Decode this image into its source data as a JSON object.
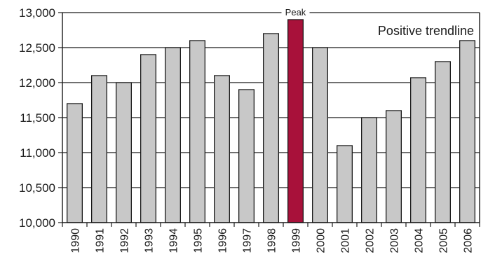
{
  "chart_data": {
    "type": "bar",
    "categories": [
      "1990",
      "1991",
      "1992",
      "1993",
      "1994",
      "1995",
      "1996",
      "1997",
      "1998",
      "1999",
      "2000",
      "2001",
      "2002",
      "2003",
      "2004",
      "2005",
      "2006"
    ],
    "values": [
      11700,
      12100,
      12000,
      12400,
      12500,
      12600,
      12100,
      11900,
      12700,
      12900,
      12500,
      11100,
      11500,
      11600,
      12070,
      12300,
      12600
    ],
    "title": "",
    "xlabel": "",
    "ylabel": "",
    "ylim": [
      10000,
      13000
    ],
    "yticks": [
      10000,
      10500,
      11000,
      11500,
      12000,
      12500,
      13000
    ],
    "ytick_labels": [
      "10,000",
      "10,500",
      "11,000",
      "11,500",
      "12,000",
      "12,500",
      "13,000"
    ],
    "grid": "horizontal",
    "highlight_index": 9,
    "colors": {
      "bar": "#c8c8c8",
      "highlight": "#a8113a",
      "edge": "#1a1a1a"
    },
    "annotations": {
      "peak_label": "Peak",
      "trend_text": "Positive trendline"
    }
  }
}
